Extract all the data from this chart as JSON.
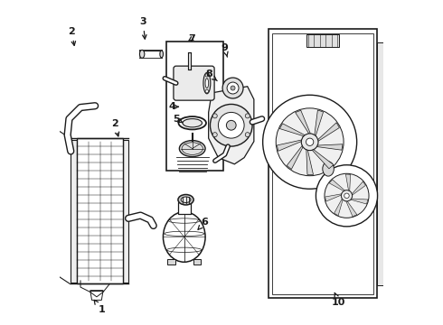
{
  "background_color": "#ffffff",
  "line_color": "#1a1a1a",
  "figsize": [
    4.9,
    3.6
  ],
  "dpi": 100,
  "label_positions": {
    "1": [
      0.13,
      0.045,
      0.13,
      0.085
    ],
    "2a": [
      0.048,
      0.895,
      0.055,
      0.835
    ],
    "2b": [
      0.175,
      0.6,
      0.185,
      0.555
    ],
    "3": [
      0.27,
      0.925,
      0.275,
      0.87
    ],
    "4": [
      0.358,
      0.655,
      0.39,
      0.655
    ],
    "5": [
      0.373,
      0.615,
      0.402,
      0.615
    ],
    "6": [
      0.435,
      0.315,
      0.415,
      0.315
    ],
    "7": [
      0.395,
      0.87,
      0.375,
      0.87
    ],
    "8": [
      0.468,
      0.76,
      0.49,
      0.74
    ],
    "9": [
      0.52,
      0.84,
      0.528,
      0.81
    ],
    "10": [
      0.862,
      0.078,
      0.84,
      0.095
    ]
  }
}
